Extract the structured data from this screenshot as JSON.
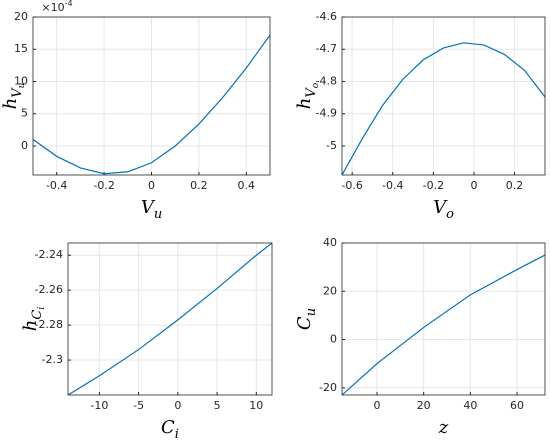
{
  "chart_data": [
    {
      "type": "line",
      "x": [
        -0.5,
        -0.4,
        -0.3,
        -0.2,
        -0.1,
        0,
        0.1,
        0.2,
        0.3,
        0.4,
        0.5
      ],
      "values": [
        1.0,
        -1.6,
        -3.4,
        -4.3,
        -4.0,
        -2.6,
        0,
        3.4,
        7.5,
        12.1,
        17.2
      ],
      "color": "#0072bd",
      "xlim": [
        -0.5,
        0.5
      ],
      "ylim": [
        -4.5,
        20
      ],
      "xticks": [
        -0.4,
        -0.2,
        0,
        0.2,
        0.4
      ],
      "yticks": [
        0,
        5,
        10,
        15,
        20
      ],
      "grid": true,
      "xlabel": {
        "base": "V",
        "sub": "u"
      },
      "ylabel": {
        "base": "h",
        "sub": "V",
        "subsub": "u"
      },
      "exponent_label": {
        "base": "×10",
        "sup": "-4"
      }
    },
    {
      "type": "line",
      "x": [
        -0.65,
        -0.55,
        -0.45,
        -0.35,
        -0.25,
        -0.15,
        -0.05,
        0.05,
        0.15,
        0.25,
        0.35
      ],
      "values": [
        -5.09,
        -4.977,
        -4.874,
        -4.793,
        -4.733,
        -4.696,
        -4.68,
        -4.687,
        -4.716,
        -4.766,
        -4.848
      ],
      "color": "#0072bd",
      "xlim": [
        -0.65,
        0.35
      ],
      "ylim": [
        -5.09,
        -4.6
      ],
      "xticks": [
        -0.6,
        -0.4,
        -0.2,
        0,
        0.2
      ],
      "yticks": [
        -5,
        -4.9,
        -4.8,
        -4.7,
        -4.6
      ],
      "grid": true,
      "xlabel": {
        "base": "V",
        "sub": "o"
      },
      "ylabel": {
        "base": "h",
        "sub": "V",
        "subsub": "o"
      }
    },
    {
      "type": "line",
      "x": [
        -14,
        -10,
        -5,
        0,
        5,
        10,
        12
      ],
      "values": [
        -2.32,
        -2.309,
        -2.294,
        -2.277,
        -2.259,
        -2.24,
        -2.233
      ],
      "color": "#0072bd",
      "xlim": [
        -14,
        12
      ],
      "ylim": [
        -2.32,
        -2.233
      ],
      "xticks": [
        -10,
        -5,
        0,
        5,
        10
      ],
      "yticks": [
        -2.3,
        -2.28,
        -2.26,
        -2.24
      ],
      "grid": true,
      "xlabel": {
        "base": "C",
        "sub": "i"
      },
      "ylabel": {
        "base": "h",
        "sub": "C",
        "subsub": "i"
      }
    },
    {
      "type": "line",
      "x": [
        -15,
        0,
        20,
        40,
        60,
        72
      ],
      "values": [
        -23,
        -10,
        5,
        18.5,
        29,
        35
      ],
      "color": "#0072bd",
      "xlim": [
        -15,
        72
      ],
      "ylim": [
        -23,
        40
      ],
      "xticks": [
        0,
        20,
        40,
        60
      ],
      "yticks": [
        -20,
        0,
        20,
        40
      ],
      "grid": true,
      "xlabel": {
        "base": "z"
      },
      "ylabel": {
        "base": "C",
        "sub": "u"
      }
    }
  ]
}
